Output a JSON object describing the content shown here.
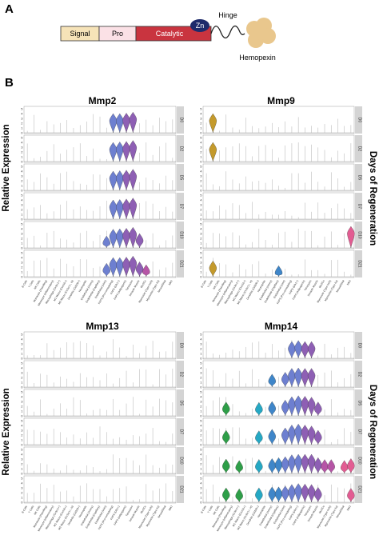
{
  "panel_a": {
    "letter": "A",
    "domains": [
      {
        "label": "Signal",
        "color": "#f6e3b8"
      },
      {
        "label": "Pro",
        "color": "#fbe1e6"
      },
      {
        "label": "Catalytic",
        "color": "#c9343f"
      }
    ],
    "zn_label": "Zn",
    "hinge_label": "Hinge",
    "hemopexin_label": "Hemopexin",
    "colors": {
      "zn": "#1f2b6b",
      "hemopexin": "#e9c78d",
      "outline": "#333333"
    }
  },
  "panel_b": {
    "letter": "B",
    "y_axis_label": "Relative Expression",
    "right_axis_label": "Days of Regeneration",
    "day_labels": [
      "D0",
      "D2",
      "D5",
      "D7",
      "D10",
      "D21"
    ],
    "y_ticks": [
      "0",
      "1",
      "2",
      "3",
      "4",
      "5"
    ],
    "cell_types": [
      "B Cells",
      "T Cells",
      "NK Cells",
      "Monocyte (Patrolling)",
      "Monocyte (Inflammatory)",
      "Macrophage (Cx3cr1+)",
      "M1 Macro (Cxcl10+)",
      "M2 Macro (Cx3cr1+, lo)",
      "Dendritic (Cd209+)",
      "Neutrophils",
      "Endothelial (Artery)",
      "Endothelial (Capillary)",
      "Endothelial (Vein)",
      "FAPS (Pro-remodeling)",
      "FAPS (Dlk1+)",
      "FAPS (Adipogenic)",
      "Tenocytes",
      "Smooth Muscle",
      "MuSCs",
      "Myonuclei (Type IIx/b)",
      "Myonuclei (Type IIa)",
      "Neural/Glial",
      "NMJ"
    ],
    "palette": [
      "#c49a2c",
      "#2e9e48",
      "#25a8c4",
      "#3f86c9",
      "#6d7fd0",
      "#8e5fb4",
      "#b655a6",
      "#e25c92"
    ],
    "genes": [
      "Mmp2",
      "Mmp9",
      "Mmp13",
      "Mmp14"
    ]
  },
  "chart_data": [
    {
      "type": "violin",
      "title": "Mmp2",
      "ylabel": "Relative Expression",
      "ylim": [
        0,
        5
      ],
      "rows": [
        "D0",
        "D2",
        "D5",
        "D7",
        "D10",
        "D21"
      ],
      "violins": [
        {
          "row": "D0",
          "cell_indices": [
            13,
            14,
            15,
            16
          ],
          "peak": [
            2.5,
            2.5,
            2.6,
            2.8
          ]
        },
        {
          "row": "D2",
          "cell_indices": [
            13,
            14,
            15,
            16
          ],
          "peak": [
            2.5,
            2.6,
            2.7,
            2.9
          ]
        },
        {
          "row": "D5",
          "cell_indices": [
            13,
            14,
            15,
            16
          ],
          "peak": [
            2.5,
            2.6,
            2.7,
            2.9
          ]
        },
        {
          "row": "D7",
          "cell_indices": [
            13,
            14,
            15,
            16
          ],
          "peak": [
            2.5,
            2.6,
            2.7,
            2.9
          ]
        },
        {
          "row": "D10",
          "cell_indices": [
            12,
            13,
            14,
            15,
            16,
            17
          ],
          "peak": [
            1.0,
            2.4,
            2.5,
            2.6,
            2.8,
            1.5
          ]
        },
        {
          "row": "D21",
          "cell_indices": [
            12,
            13,
            14,
            15,
            16,
            17,
            18
          ],
          "peak": [
            1.3,
            2.5,
            2.5,
            2.6,
            2.8,
            1.6,
            1.0
          ]
        }
      ]
    },
    {
      "type": "violin",
      "title": "Mmp9",
      "ylim": [
        0,
        5
      ],
      "rows": [
        "D0",
        "D2",
        "D5",
        "D7",
        "D10",
        "D21"
      ],
      "violins": [
        {
          "row": "D0",
          "cell_indices": [
            1
          ],
          "peak": [
            2.5
          ]
        },
        {
          "row": "D2",
          "cell_indices": [
            1
          ],
          "peak": [
            2.5
          ]
        },
        {
          "row": "D10",
          "cell_indices": [
            22
          ],
          "peak": [
            3.0
          ]
        },
        {
          "row": "D21",
          "cell_indices": [
            1,
            11
          ],
          "peak": [
            1.8,
            0.8
          ]
        }
      ]
    },
    {
      "type": "violin",
      "title": "Mmp13",
      "ylabel": "Relative Expression",
      "ylim": [
        0,
        5
      ],
      "rows": [
        "D0",
        "D2",
        "D5",
        "D7",
        "D10",
        "D21"
      ],
      "violins": []
    },
    {
      "type": "violin",
      "title": "Mmp14",
      "ylim": [
        0,
        5
      ],
      "rows": [
        "D0",
        "D2",
        "D5",
        "D7",
        "D10",
        "D21"
      ],
      "violins": [
        {
          "row": "D0",
          "cell_indices": [
            13,
            14,
            15,
            16
          ],
          "peak": [
            2.0,
            2.2,
            2.0,
            2.0
          ]
        },
        {
          "row": "D2",
          "cell_indices": [
            10,
            12,
            13,
            14,
            15,
            16
          ],
          "peak": [
            1.2,
            1.6,
            2.4,
            2.5,
            2.4,
            2.4
          ]
        },
        {
          "row": "D5",
          "cell_indices": [
            3,
            8,
            10,
            12,
            13,
            14,
            15,
            16,
            17
          ],
          "peak": [
            1.4,
            1.3,
            1.5,
            1.8,
            2.5,
            2.7,
            2.6,
            2.4,
            1.4
          ]
        },
        {
          "row": "D7",
          "cell_indices": [
            3,
            8,
            10,
            12,
            13,
            14,
            15,
            16,
            17
          ],
          "peak": [
            1.5,
            1.4,
            1.7,
            2.0,
            2.6,
            2.8,
            2.6,
            2.4,
            1.5
          ]
        },
        {
          "row": "D10",
          "cell_indices": [
            3,
            5,
            8,
            10,
            11,
            12,
            13,
            14,
            15,
            16,
            17,
            18,
            19,
            21,
            22
          ],
          "peak": [
            1.5,
            1.2,
            1.4,
            1.6,
            1.8,
            2.0,
            2.4,
            2.5,
            2.5,
            2.5,
            1.8,
            1.4,
            1.4,
            1.2,
            1.6
          ]
        },
        {
          "row": "D21",
          "cell_indices": [
            3,
            5,
            8,
            10,
            11,
            12,
            13,
            14,
            15,
            16,
            17,
            22
          ],
          "peak": [
            1.5,
            1.3,
            1.5,
            1.7,
            1.7,
            1.9,
            2.2,
            2.4,
            2.3,
            2.2,
            1.6,
            1.4
          ]
        }
      ]
    }
  ]
}
